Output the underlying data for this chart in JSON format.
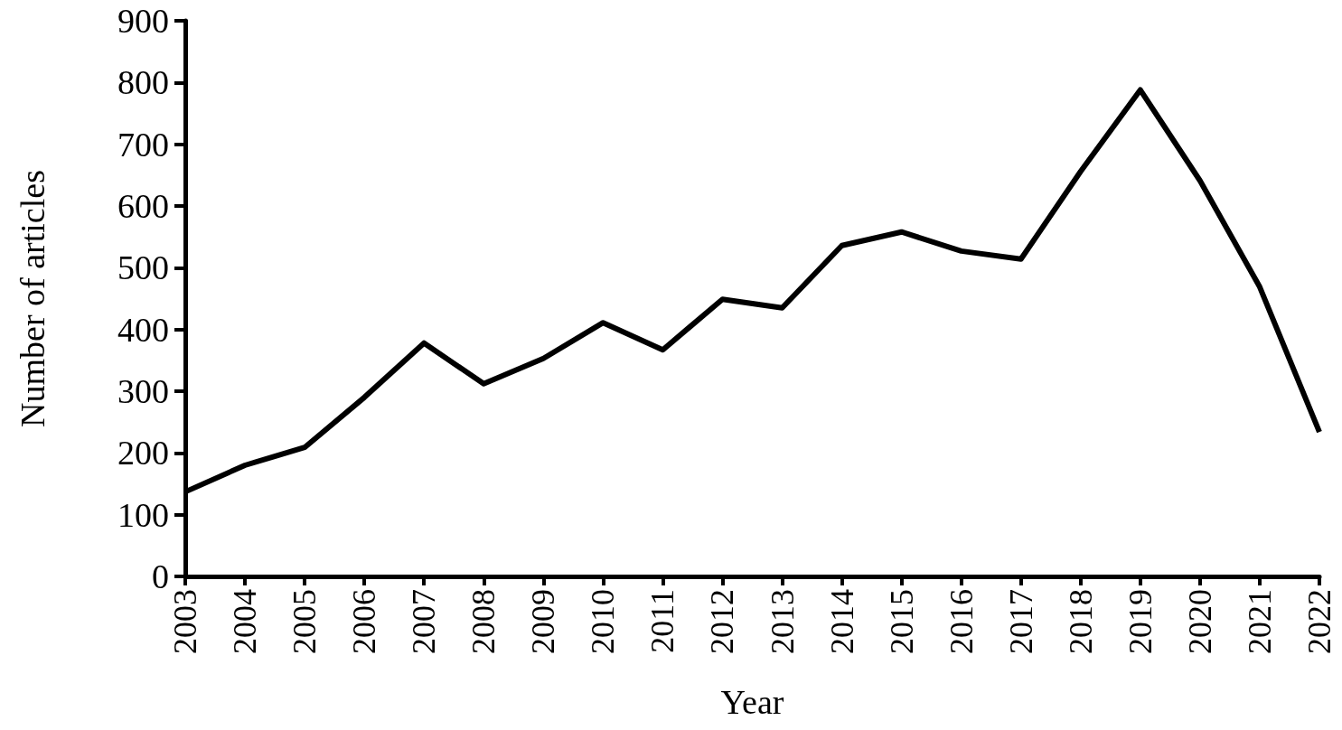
{
  "chart_data": {
    "type": "line",
    "xlabel": "Year",
    "ylabel": "Number of articles",
    "categories": [
      "2003",
      "2004",
      "2005",
      "2006",
      "2007",
      "2008",
      "2009",
      "2010",
      "2011",
      "2012",
      "2013",
      "2014",
      "2015",
      "2016",
      "2017",
      "2018",
      "2019",
      "2020",
      "2021",
      "2022"
    ],
    "series": [
      {
        "color": "#000000",
        "values": [
          137,
          180,
          209,
          290,
          378,
          312,
          353,
          411,
          367,
          449,
          435,
          536,
          558,
          527,
          514,
          656,
          788,
          641,
          469,
          234
        ]
      }
    ],
    "ylim": [
      0,
      900
    ],
    "yticks": [
      0,
      100,
      200,
      300,
      400,
      500,
      600,
      700,
      800,
      900
    ],
    "grid": false,
    "marker": "none",
    "line_style": "solid"
  }
}
